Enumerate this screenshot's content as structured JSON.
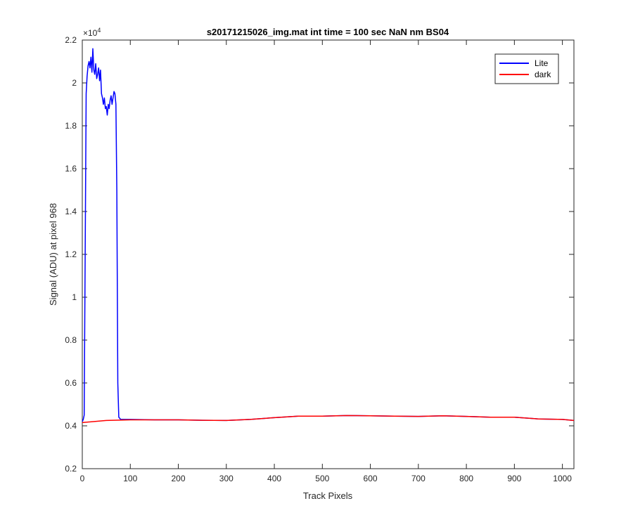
{
  "chart_data": {
    "type": "line",
    "title": "s20171215026_img.mat int time = 100 sec  NaN nm BS04",
    "xlabel": "Track Pixels",
    "ylabel": "Signal (ADU) at pixel 968",
    "xlim": [
      0,
      1024
    ],
    "ylim": [
      2000,
      22000
    ],
    "xticks": [
      "0",
      "100",
      "200",
      "300",
      "400",
      "500",
      "600",
      "700",
      "800",
      "900",
      "1000"
    ],
    "yticks": [
      "0.2",
      "0.4",
      "0.6",
      "0.8",
      "1",
      "1.2",
      "1.4",
      "1.6",
      "1.8",
      "2",
      "2.2"
    ],
    "y_exponent_label": "×10",
    "y_exponent_power": "4",
    "grid": false,
    "legend_position": "top-right",
    "series": [
      {
        "name": "Lite",
        "color": "#0000ff",
        "x": [
          0,
          2,
          4,
          6,
          8,
          10,
          12,
          14,
          16,
          18,
          20,
          22,
          24,
          26,
          28,
          30,
          32,
          34,
          36,
          38,
          40,
          42,
          44,
          46,
          48,
          50,
          52,
          54,
          56,
          58,
          60,
          62,
          64,
          66,
          68,
          70,
          72,
          74,
          76,
          78,
          80,
          100,
          150,
          200,
          250,
          300,
          350,
          400,
          450,
          500,
          550,
          600,
          650,
          700,
          750,
          800,
          850,
          900,
          950,
          1000,
          1024
        ],
        "y": [
          4200,
          4300,
          4500,
          12000,
          19500,
          20300,
          20800,
          21000,
          20700,
          21200,
          20500,
          21600,
          20600,
          20400,
          20900,
          20200,
          20400,
          20700,
          20100,
          20600,
          19500,
          19300,
          19000,
          19300,
          18800,
          18900,
          18500,
          19000,
          18800,
          19200,
          19400,
          19000,
          19300,
          19600,
          19500,
          19000,
          15000,
          6000,
          4400,
          4350,
          4300,
          4300,
          4280,
          4280,
          4260,
          4250,
          4300,
          4380,
          4450,
          4450,
          4480,
          4470,
          4450,
          4440,
          4470,
          4440,
          4400,
          4400,
          4320,
          4300,
          4250
        ]
      },
      {
        "name": "dark",
        "color": "#ff0000",
        "x": [
          0,
          50,
          100,
          150,
          200,
          250,
          300,
          350,
          400,
          450,
          500,
          550,
          600,
          650,
          700,
          750,
          800,
          850,
          900,
          950,
          1000,
          1024
        ],
        "y": [
          4150,
          4250,
          4280,
          4280,
          4280,
          4260,
          4250,
          4300,
          4380,
          4450,
          4450,
          4480,
          4470,
          4450,
          4440,
          4470,
          4440,
          4400,
          4400,
          4320,
          4300,
          4250
        ]
      }
    ]
  }
}
